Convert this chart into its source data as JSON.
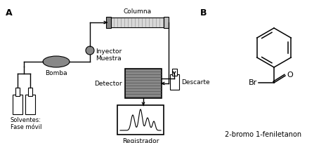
{
  "bg_color": "#ffffff",
  "line_color": "#000000",
  "gray_fill": "#888888",
  "label_A": "A",
  "label_B": "B",
  "label_columna": "Columna",
  "label_inyector": "Inyector\nMuestra",
  "label_bomba": "Bomba",
  "label_detector": "Detector",
  "label_descarte": "Descarte",
  "label_solventes": "Solventes:\nFase móvil",
  "label_registrador": "Registrador",
  "label_molecule": "2-bromo 1-feniletanon",
  "label_Br": "Br",
  "label_O": "O",
  "fontsize": 6.5,
  "fontsize_label": 9
}
